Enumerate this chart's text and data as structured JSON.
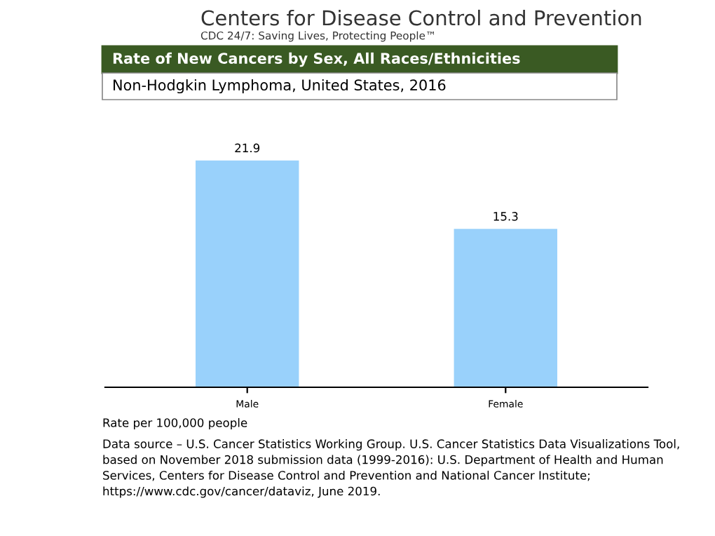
{
  "chart_data": {
    "type": "bar",
    "title": "Rate of New Cancers by Sex, All Races/Ethnicities",
    "subtitle": "Non-Hodgkin Lymphoma, United States, 2016",
    "categories": [
      "Male",
      "Female"
    ],
    "values": [
      21.9,
      15.3
    ],
    "color": "#99d1fb",
    "data_labels": true,
    "grid": false,
    "legend": false,
    "tick_labels": "x",
    "annotations": [
      "Centers for Disease Control and Prevention",
      "CDC 24/7: Saving Lives, Protecting People™",
      "Rate per 100,000 people",
      "Data source – U.S. Cancer Statistics Working Group. U.S. Cancer Statistics Data Visualizations Tool, based on November 2018 submission data (1999-2016): U.S. Department of Health and Human Services, Centers for Disease Control and Prevention and National Cancer Institute; https://www.cdc.gov/cancer/dataviz, June 2019."
    ]
  }
}
